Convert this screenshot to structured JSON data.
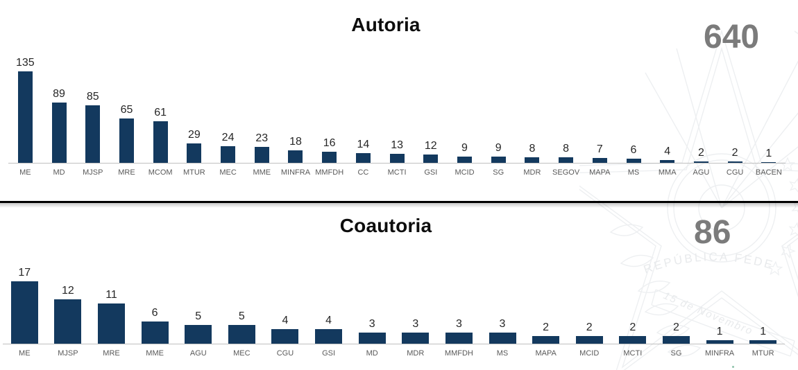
{
  "titles": {
    "autoria": "Autoria",
    "coautoria": "Coautoria"
  },
  "totals": {
    "autoria": "640",
    "coautoria": "86"
  },
  "chart_data": [
    {
      "type": "bar",
      "title": "Autoria",
      "total": 640,
      "categories": [
        "ME",
        "MD",
        "MJSP",
        "MRE",
        "MCOM",
        "MTUR",
        "MEC",
        "MME",
        "MINFRA",
        "MMFDH",
        "CC",
        "MCTI",
        "GSI",
        "MCID",
        "SG",
        "MDR",
        "SEGOV",
        "MAPA",
        "MS",
        "MMA",
        "AGU",
        "CGU",
        "BACEN"
      ],
      "values": [
        135,
        89,
        85,
        65,
        61,
        29,
        24,
        23,
        18,
        16,
        14,
        13,
        12,
        9,
        9,
        8,
        8,
        7,
        6,
        4,
        2,
        2,
        1
      ],
      "bar_color": "#13395e",
      "value_label_color": "#262626",
      "x_label_color": "#595959",
      "axis_line_color": "#c0c0c0",
      "grid": false,
      "legend": false,
      "ylim": [
        0,
        140
      ],
      "data_labels": "above bars"
    },
    {
      "type": "bar",
      "title": "Coautoria",
      "total": 86,
      "categories": [
        "ME",
        "MJSP",
        "MRE",
        "MME",
        "AGU",
        "MEC",
        "CGU",
        "GSI",
        "MD",
        "MDR",
        "MMFDH",
        "MS",
        "MAPA",
        "MCID",
        "MCTI",
        "SG",
        "MINFRA",
        "MTUR"
      ],
      "values": [
        17,
        12,
        11,
        6,
        5,
        5,
        4,
        4,
        3,
        3,
        3,
        3,
        2,
        2,
        2,
        2,
        1,
        1
      ],
      "bar_color": "#13395e",
      "value_label_color": "#262626",
      "x_label_color": "#595959",
      "axis_line_color": "#c0c0c0",
      "grid": false,
      "legend": false,
      "ylim": [
        0,
        18
      ],
      "data_labels": "above bars"
    }
  ],
  "watermark": {
    "name": "brazil-coat-of-arms-watermark",
    "ring_text": "REPÚBLICA FEDE",
    "ribbon_text": "15 de Novembro",
    "line_color": "#edeff1",
    "text_color": "#e8eaec"
  },
  "colors": {
    "bar": "#13395e",
    "total_number": "#7b7b7b",
    "title": "#0d0d0d",
    "divider": "#000000",
    "background": "#ffffff"
  }
}
